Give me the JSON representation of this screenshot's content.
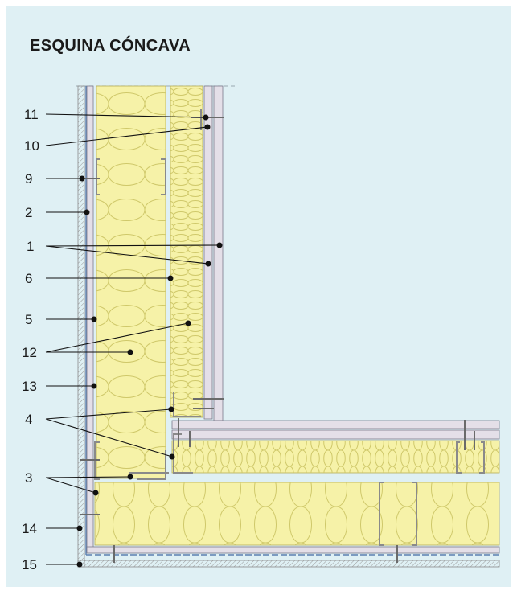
{
  "title": "ESQUINA CÓNCAVA",
  "labels": [
    "11",
    "10",
    "9",
    "2",
    "1",
    "6",
    "5",
    "12",
    "13",
    "4",
    "3",
    "14",
    "15"
  ],
  "colors": {
    "background": "#dff0f4",
    "insulation": "#f6f2a8",
    "board": "#e4dfe8",
    "board_edge": "#7a7a8a",
    "profile": "#8a8a8a",
    "membrane": "#5b7fb0",
    "leader": "#111111"
  }
}
